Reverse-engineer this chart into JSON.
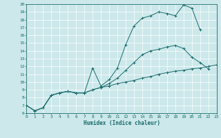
{
  "xlabel": "Humidex (Indice chaleur)",
  "bg_color": "#cce8eb",
  "grid_color": "#b0d8dc",
  "line_color": "#1a6b6b",
  "xlim": [
    0,
    23
  ],
  "ylim": [
    6,
    20
  ],
  "xticks": [
    0,
    1,
    2,
    3,
    4,
    5,
    6,
    7,
    8,
    9,
    10,
    11,
    12,
    13,
    14,
    15,
    16,
    17,
    18,
    19,
    20,
    21,
    22,
    23
  ],
  "yticks": [
    6,
    7,
    8,
    9,
    10,
    11,
    12,
    13,
    14,
    15,
    16,
    17,
    18,
    19,
    20
  ],
  "series": [
    {
      "x": [
        0,
        1,
        2,
        3,
        4,
        5,
        6,
        7,
        8,
        9,
        10,
        11,
        12,
        13,
        14,
        15,
        16,
        17,
        18,
        19,
        20,
        21,
        22,
        23
      ],
      "y": [
        7.0,
        6.3,
        6.7,
        8.3,
        8.6,
        8.8,
        8.6,
        8.6,
        9.0,
        9.3,
        9.5,
        9.8,
        10.0,
        10.2,
        10.5,
        10.7,
        11.0,
        11.2,
        11.4,
        11.5,
        11.7,
        11.8,
        12.0,
        12.2
      ]
    },
    {
      "x": [
        0,
        1,
        2,
        3,
        4,
        5,
        6,
        7,
        8,
        9,
        10,
        11,
        12,
        13,
        14,
        15,
        16,
        17,
        18,
        19,
        20,
        21,
        22,
        23
      ],
      "y": [
        7.0,
        6.3,
        6.7,
        8.3,
        8.6,
        8.8,
        8.6,
        8.6,
        9.0,
        9.3,
        9.8,
        10.5,
        11.5,
        12.5,
        13.5,
        14.0,
        14.2,
        14.5,
        14.7,
        14.3,
        13.2,
        12.5,
        11.7,
        null
      ]
    },
    {
      "x": [
        0,
        1,
        2,
        3,
        4,
        5,
        6,
        7,
        8,
        9,
        10,
        11,
        12,
        13,
        14,
        15,
        16,
        17,
        18,
        19,
        20,
        21,
        22,
        23
      ],
      "y": [
        7.0,
        6.3,
        6.7,
        8.3,
        8.6,
        8.8,
        8.6,
        8.6,
        11.8,
        9.5,
        10.3,
        11.8,
        14.8,
        17.2,
        18.2,
        18.5,
        19.0,
        18.8,
        18.5,
        19.9,
        19.5,
        16.7,
        null,
        null
      ]
    }
  ]
}
